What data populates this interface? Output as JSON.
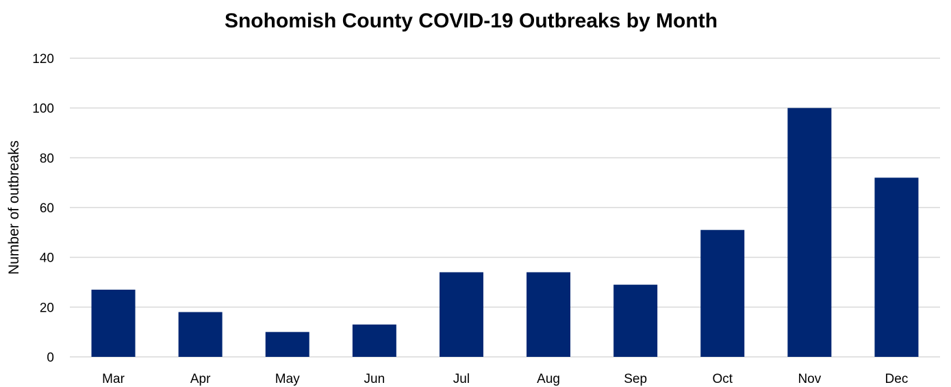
{
  "chart_data": {
    "type": "bar",
    "title": "Snohomish County COVID-19 Outbreaks by Month",
    "xlabel": "",
    "ylabel": "Number of outbreaks",
    "categories": [
      "Mar",
      "Apr",
      "May",
      "Jun",
      "Jul",
      "Aug",
      "Sep",
      "Oct",
      "Nov",
      "Dec"
    ],
    "values": [
      27,
      18,
      10,
      13,
      34,
      34,
      29,
      51,
      100,
      72
    ],
    "ylim": [
      0,
      120
    ],
    "yticks": [
      "0",
      "20",
      "40",
      "60",
      "80",
      "100",
      "120"
    ],
    "grid": true,
    "legend": "none",
    "bar_color": "#002673",
    "grid_color": "#d9d9d9"
  }
}
